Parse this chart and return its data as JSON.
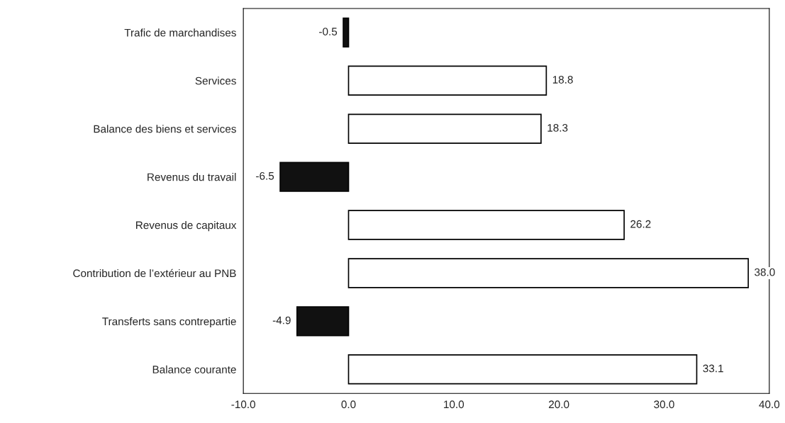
{
  "chart_data": {
    "type": "bar",
    "orientation": "horizontal",
    "categories": [
      "Trafic de marchandises",
      "Services",
      "Balance des biens et services",
      "Revenus du travail",
      "Revenus de capitaux",
      "Contribution de l’extérieur au PNB",
      "Transferts sans contrepartie",
      "Balance courante"
    ],
    "values": [
      -0.5,
      18.8,
      18.3,
      -6.5,
      26.2,
      38.0,
      -4.9,
      33.1
    ],
    "colors": [
      "#111111",
      "#ffffff",
      "#ffffff",
      "#111111",
      "#ffffff",
      "#ffffff",
      "#111111",
      "#ffffff"
    ],
    "value_labels": [
      "-0.5",
      "18.8",
      "18.3",
      "-6.5",
      "26.2",
      "38.0",
      "-4.9",
      "33.1"
    ],
    "xlim": [
      -10,
      40
    ],
    "xticks": [
      {
        "value": -10,
        "label": "-10.0"
      },
      {
        "value": 0,
        "label": "0.0"
      },
      {
        "value": 10,
        "label": "10.0"
      },
      {
        "value": 20,
        "label": "20.0"
      },
      {
        "value": 30,
        "label": "30.0"
      },
      {
        "value": 40,
        "label": "40.0"
      }
    ],
    "legend": false
  }
}
